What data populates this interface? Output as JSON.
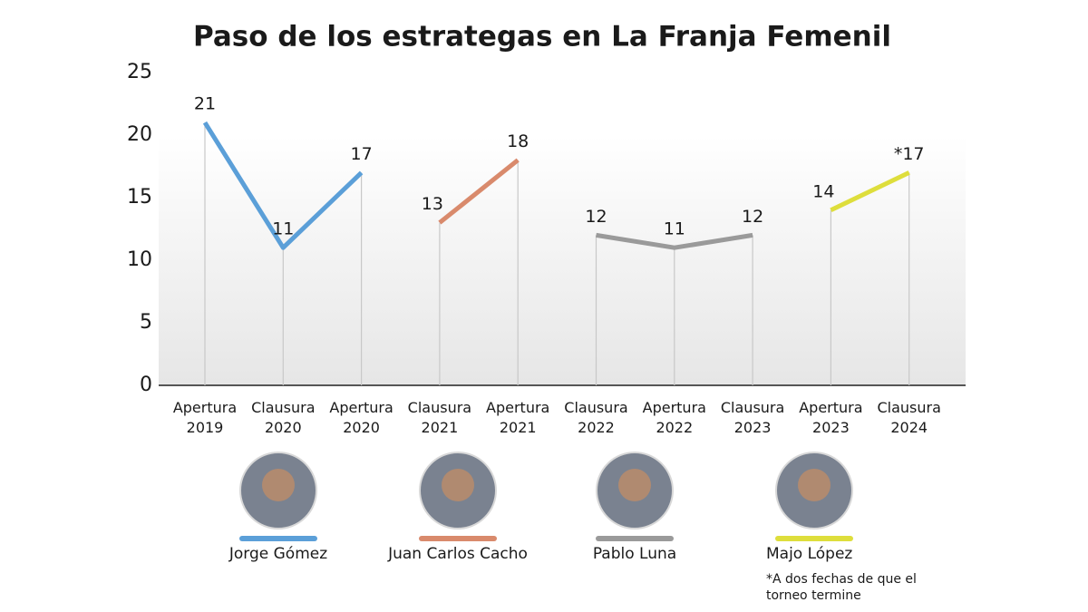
{
  "chart_data": {
    "type": "line",
    "title": "Paso de los estrategas en La Franja Femenil",
    "categories": [
      "Apertura 2019",
      "Clausura 2020",
      "Apertura 2020",
      "Clausura 2021",
      "Apertura 2021",
      "Clausura 2022",
      "Apertura 2022",
      "Clausura 2023",
      "Apertura 2023",
      "Clausura 2024"
    ],
    "series": [
      {
        "name": "Jorge Gómez",
        "color": "#5b9fd8",
        "values": [
          21,
          11,
          17,
          null,
          null,
          null,
          null,
          null,
          null,
          null
        ]
      },
      {
        "name": "Juan Carlos Cacho",
        "color": "#d98a6c",
        "values": [
          null,
          null,
          null,
          13,
          18,
          null,
          null,
          null,
          null,
          null
        ]
      },
      {
        "name": "Pablo Luna",
        "color": "#9a9a9a",
        "values": [
          null,
          null,
          null,
          null,
          null,
          12,
          11,
          12,
          null,
          null
        ]
      },
      {
        "name": "Majo López",
        "color": "#dede3c",
        "values": [
          null,
          null,
          null,
          null,
          null,
          null,
          null,
          null,
          14,
          17
        ],
        "value_labels": [
          null,
          null,
          null,
          null,
          null,
          null,
          null,
          null,
          "14",
          "*17"
        ]
      }
    ],
    "ylim": [
      0,
      25
    ],
    "yticks": [
      0,
      5,
      10,
      15,
      20,
      25
    ],
    "annotation": "*A dos fechas de que el torneo termine"
  }
}
